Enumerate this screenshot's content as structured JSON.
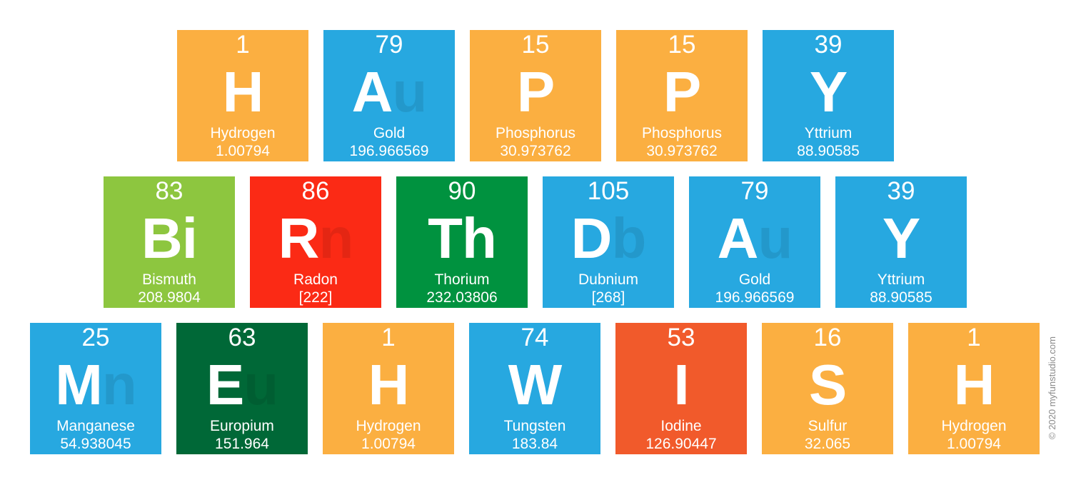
{
  "colors": {
    "orange": "#FBAF41",
    "blue": "#27A8E0",
    "lime": "#8DC63F",
    "red": "#FB2A15",
    "green": "#00923F",
    "dark_green": "#006837",
    "orange_red": "#F15A2B"
  },
  "rows": [
    [
      {
        "number": "1",
        "symbol": "H",
        "faded": "",
        "name": "Hydrogen",
        "mass": "1.00794",
        "color": "orange"
      },
      {
        "number": "79",
        "symbol": "A",
        "faded": "u",
        "name": "Gold",
        "mass": "196.966569",
        "color": "blue"
      },
      {
        "number": "15",
        "symbol": "P",
        "faded": "",
        "name": "Phosphorus",
        "mass": "30.973762",
        "color": "orange"
      },
      {
        "number": "15",
        "symbol": "P",
        "faded": "",
        "name": "Phosphorus",
        "mass": "30.973762",
        "color": "orange"
      },
      {
        "number": "39",
        "symbol": "Y",
        "faded": "",
        "name": "Yttrium",
        "mass": "88.90585",
        "color": "blue"
      }
    ],
    [
      {
        "number": "83",
        "symbol": "Bi",
        "faded": "",
        "name": "Bismuth",
        "mass": "208.9804",
        "color": "lime"
      },
      {
        "number": "86",
        "symbol": "R",
        "faded": "n",
        "name": "Radon",
        "mass": "[222]",
        "color": "red"
      },
      {
        "number": "90",
        "symbol": "Th",
        "faded": "",
        "name": "Thorium",
        "mass": "232.03806",
        "color": "green"
      },
      {
        "number": "105",
        "symbol": "D",
        "faded": "b",
        "name": "Dubnium",
        "mass": "[268]",
        "color": "blue"
      },
      {
        "number": "79",
        "symbol": "A",
        "faded": "u",
        "name": "Gold",
        "mass": "196.966569",
        "color": "blue"
      },
      {
        "number": "39",
        "symbol": "Y",
        "faded": "",
        "name": "Yttrium",
        "mass": "88.90585",
        "color": "blue"
      }
    ],
    [
      {
        "number": "25",
        "symbol": "M",
        "faded": "n",
        "name": "Manganese",
        "mass": "54.938045",
        "color": "blue"
      },
      {
        "number": "63",
        "symbol": "E",
        "faded": "u",
        "name": "Europium",
        "mass": "151.964",
        "color": "dark_green"
      },
      {
        "number": "1",
        "symbol": "H",
        "faded": "",
        "name": "Hydrogen",
        "mass": "1.00794",
        "color": "orange"
      },
      {
        "number": "74",
        "symbol": "W",
        "faded": "",
        "name": "Tungsten",
        "mass": "183.84",
        "color": "blue"
      },
      {
        "number": "53",
        "symbol": "I",
        "faded": "",
        "name": "Iodine",
        "mass": "126.90447",
        "color": "orange_red"
      },
      {
        "number": "16",
        "symbol": "S",
        "faded": "",
        "name": "Sulfur",
        "mass": "32.065",
        "color": "orange"
      },
      {
        "number": "1",
        "symbol": "H",
        "faded": "",
        "name": "Hydrogen",
        "mass": "1.00794",
        "color": "orange"
      }
    ]
  ],
  "credit": "© 2020 myfunstudio.com"
}
